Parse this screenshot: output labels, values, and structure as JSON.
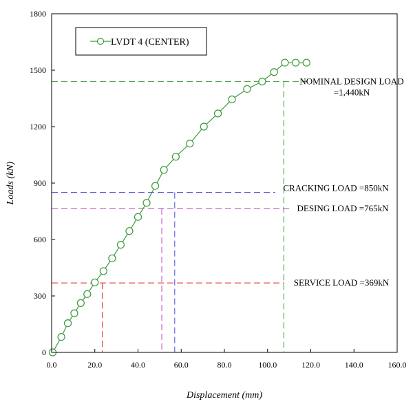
{
  "chart_data": {
    "type": "line",
    "xlabel": "Displacement (mm)",
    "ylabel": "Loads (kN)",
    "xlim": [
      0,
      160
    ],
    "ylim": [
      0,
      1800
    ],
    "x_ticks": [
      "0.0",
      "20.0",
      "40.0",
      "60.0",
      "80.0",
      "100.0",
      "120.0",
      "140.0",
      "160.0"
    ],
    "y_ticks": [
      "0",
      "300",
      "600",
      "900",
      "1200",
      "1500",
      "1800"
    ],
    "grid": false,
    "legend": "top-left",
    "series": [
      {
        "name": "LVDT 4 (CENTER)",
        "color": "#3a9a3a",
        "marker": "open-circle",
        "x": [
          0.5,
          4.5,
          7.5,
          10.5,
          13.5,
          16.5,
          20.0,
          24.0,
          28.0,
          32.0,
          36.0,
          40.0,
          44.0,
          48.0,
          52.0,
          57.5,
          64.0,
          70.5,
          77.0,
          83.5,
          90.5,
          97.5,
          103.0,
          108.0,
          113.0,
          118.0
        ],
        "y": [
          0,
          82,
          155,
          208,
          262,
          310,
          372,
          432,
          500,
          572,
          645,
          720,
          795,
          885,
          970,
          1040,
          1110,
          1200,
          1270,
          1345,
          1400,
          1440,
          1490,
          1540,
          1540,
          1540
        ]
      }
    ],
    "reference_lines": [
      {
        "label_lines": [
          "NOMINAL DESIGN LOAD",
          "=1,440kN"
        ],
        "y": 1440,
        "x": 107.5,
        "color": "#3a9a3a"
      },
      {
        "label_lines": [
          "CRACKING LOAD =850kN"
        ],
        "y": 850,
        "x": 57.0,
        "color": "#4444dd"
      },
      {
        "label_lines": [
          "DESING LOAD =765kN"
        ],
        "y": 765,
        "x": 51.0,
        "color": "#bb44bb"
      },
      {
        "label_lines": [
          "SERVICE LOAD =369kN"
        ],
        "y": 369,
        "x": 23.5,
        "color": "#dd2222"
      }
    ]
  }
}
